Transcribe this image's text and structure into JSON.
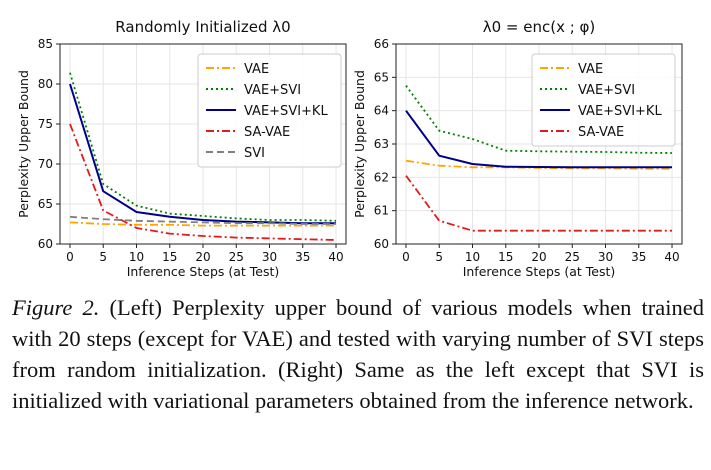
{
  "chart_data": [
    {
      "type": "line",
      "title": "Randomly Initialized λ0",
      "xlabel": "Inference Steps (at Test)",
      "ylabel": "Perplexity Upper Bound",
      "x": [
        0,
        5,
        10,
        15,
        20,
        25,
        30,
        35,
        40
      ],
      "xlim": [
        -1.5,
        41.5
      ],
      "ylim": [
        60,
        85
      ],
      "xticks": [
        0,
        5,
        10,
        15,
        20,
        25,
        30,
        35,
        40
      ],
      "yticks": [
        60,
        65,
        70,
        75,
        80,
        85
      ],
      "legend": "top-right",
      "series": [
        {
          "name": "VAE",
          "color": "#ffa500",
          "dash": "dashdot",
          "values": [
            62.7,
            62.5,
            62.4,
            62.4,
            62.3,
            62.3,
            62.3,
            62.3,
            62.3
          ]
        },
        {
          "name": "VAE+SVI",
          "color": "#008000",
          "dash": "dotted",
          "values": [
            81.4,
            67.5,
            64.8,
            63.8,
            63.5,
            63.2,
            63.0,
            63.0,
            62.9
          ]
        },
        {
          "name": "VAE+SVI+KL",
          "color": "#00008b",
          "dash": "solid",
          "values": [
            80.0,
            66.6,
            64.0,
            63.4,
            63.0,
            62.8,
            62.7,
            62.6,
            62.6
          ]
        },
        {
          "name": "SA-VAE",
          "color": "#e31a1c",
          "dash": "dashdot",
          "values": [
            75.0,
            64.2,
            62.0,
            61.3,
            61.0,
            60.8,
            60.7,
            60.6,
            60.5
          ]
        },
        {
          "name": "SVI",
          "color": "#808080",
          "dash": "dashed",
          "values": [
            63.4,
            63.1,
            62.9,
            62.8,
            62.7,
            62.6,
            62.6,
            62.5,
            62.5
          ]
        }
      ]
    },
    {
      "type": "line",
      "title": "λ0 = enc(x ; φ)",
      "xlabel": "Inference Steps (at Test)",
      "ylabel": "Perplexity Upper Bound",
      "x": [
        0,
        5,
        10,
        15,
        20,
        25,
        30,
        35,
        40
      ],
      "xlim": [
        -1.5,
        41.5
      ],
      "ylim": [
        60,
        66
      ],
      "xticks": [
        0,
        5,
        10,
        15,
        20,
        25,
        30,
        35,
        40
      ],
      "yticks": [
        60,
        61,
        62,
        63,
        64,
        65,
        66
      ],
      "legend": "top-right",
      "series": [
        {
          "name": "VAE",
          "color": "#ffa500",
          "dash": "dashdot",
          "values": [
            62.5,
            62.35,
            62.3,
            62.3,
            62.28,
            62.27,
            62.27,
            62.26,
            62.26
          ]
        },
        {
          "name": "VAE+SVI",
          "color": "#008000",
          "dash": "dotted",
          "values": [
            64.75,
            63.4,
            63.15,
            62.8,
            62.78,
            62.77,
            62.76,
            62.74,
            62.73
          ]
        },
        {
          "name": "VAE+SVI+KL",
          "color": "#00008b",
          "dash": "solid",
          "values": [
            64.0,
            62.65,
            62.4,
            62.32,
            62.31,
            62.3,
            62.3,
            62.3,
            62.3
          ]
        },
        {
          "name": "SA-VAE",
          "color": "#e31a1c",
          "dash": "dashdot",
          "values": [
            62.05,
            60.7,
            60.4,
            60.4,
            60.4,
            60.4,
            60.4,
            60.4,
            60.4
          ]
        }
      ]
    }
  ],
  "caption": {
    "lead": "Figure 2.",
    "text": " (Left) Perplexity upper bound of various models when trained with 20 steps (except for VAE) and tested with varying number of SVI steps from random initialization. (Right) Same as the left except that SVI is initialized with variational parameters obtained from the inference network."
  }
}
